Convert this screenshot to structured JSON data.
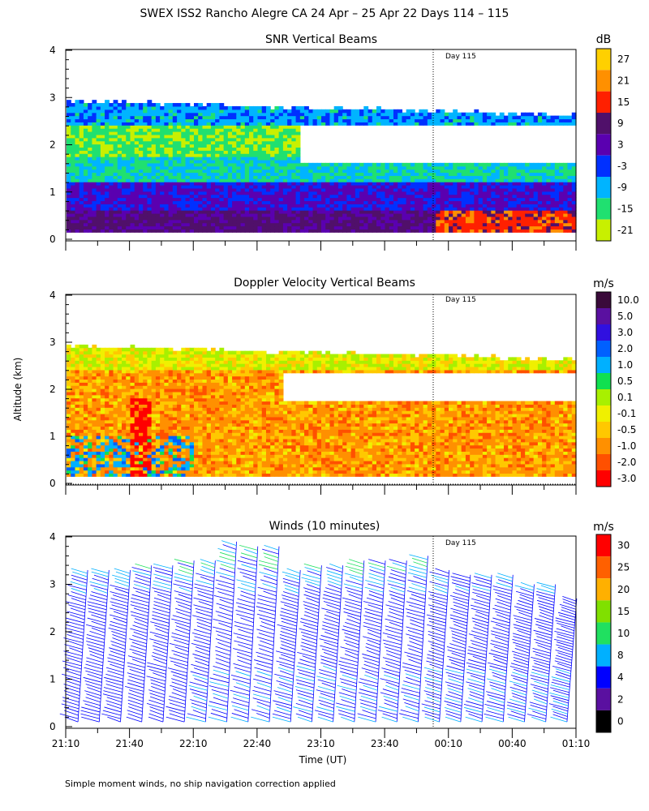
{
  "figure": {
    "title": "SWEX ISS2 Rancho Alegre CA  24 Apr – 25 Apr 22 Days 114 – 115",
    "footnote": "Simple moment winds, no ship navigation correction applied",
    "ylabel": "Altitude (km)",
    "xlabel": "Time (UT)",
    "day_marker_label": "Day 115",
    "x_ticks": [
      "21:10",
      "21:40",
      "22:10",
      "22:40",
      "23:10",
      "23:40",
      "00:10",
      "00:40",
      "01:10"
    ]
  },
  "chart_data": [
    {
      "type": "heatmap",
      "title": "SNR Vertical Beams",
      "colorbar": {
        "unit": "dB",
        "labels": [
          "27",
          "21",
          "15",
          "9",
          "3",
          "-3",
          "-9",
          "-15",
          "-21"
        ],
        "colors": [
          "#ffd000",
          "#ff9000",
          "#ff2000",
          "#50106a",
          "#5a00b0",
          "#0030ff",
          "#00b4ff",
          "#20e070",
          "#c8f000"
        ]
      },
      "y_ticks": [
        "0",
        "1",
        "2",
        "3",
        "4"
      ],
      "ylim": [
        0,
        4
      ],
      "x_range": [
        "21:10",
        "01:10"
      ],
      "data_extent_km": [
        0.15,
        2.9
      ],
      "day_marker_time": "00:04",
      "layers": [
        {
          "from_km": 0.15,
          "to_km": 0.6,
          "snr_db": 7
        },
        {
          "from_km": 0.6,
          "to_km": 1.2,
          "snr_db": 1
        },
        {
          "from_km": 1.2,
          "to_km": 1.7,
          "snr_db": -12
        },
        {
          "from_km": 1.7,
          "to_km": 2.4,
          "snr_db": -17
        },
        {
          "from_km": 2.4,
          "to_km": 2.9,
          "snr_db": -8
        }
      ]
    },
    {
      "type": "heatmap",
      "title": "Doppler Velocity Vertical Beams",
      "colorbar": {
        "unit": "m/s",
        "labels": [
          "10.0",
          "5.0",
          "3.0",
          "2.0",
          "1.0",
          "0.5",
          "0.1",
          "-0.1",
          "-0.5",
          "-1.0",
          "-2.0",
          "-3.0"
        ],
        "colors": [
          "#3a0a3a",
          "#5a10a0",
          "#3010e0",
          "#0060ff",
          "#00b0ff",
          "#10e050",
          "#a8f000",
          "#f0f000",
          "#ffc800",
          "#ff9000",
          "#ff5000",
          "#ff0000"
        ]
      },
      "y_ticks": [
        "0",
        "1",
        "2",
        "3",
        "4"
      ],
      "ylim": [
        0,
        4
      ],
      "x_range": [
        "21:10",
        "01:10"
      ],
      "data_extent_km": [
        0.15,
        2.9
      ],
      "day_marker_time": "00:04",
      "dominant_velocity_ms": -1.0
    },
    {
      "type": "wind_barbs",
      "title": "Winds (10 minutes)",
      "colorbar": {
        "unit": "m/s",
        "labels": [
          "30",
          "25",
          "20",
          "15",
          "10",
          "8",
          "4",
          "2",
          "0"
        ],
        "colors": [
          "#ff0000",
          "#ff6000",
          "#ffb000",
          "#80e000",
          "#20e060",
          "#00b0ff",
          "#0000ff",
          "#5a10a0",
          "#000000"
        ]
      },
      "y_ticks": [
        "0",
        "1",
        "2",
        "3",
        "4"
      ],
      "ylim": [
        0,
        4
      ],
      "x_range": [
        "21:10",
        "01:10"
      ],
      "day_marker_time": "00:04",
      "profile_times": [
        "21:15",
        "21:25",
        "21:35",
        "21:45",
        "21:55",
        "22:05",
        "22:15",
        "22:25",
        "22:35",
        "22:45",
        "22:55",
        "23:05",
        "23:15",
        "23:25",
        "23:35",
        "23:45",
        "23:55",
        "00:05",
        "00:15",
        "00:25",
        "00:35",
        "00:45",
        "00:55",
        "01:05"
      ],
      "profile_tops_km": [
        3.3,
        3.3,
        3.3,
        3.4,
        3.4,
        3.5,
        3.5,
        3.9,
        3.8,
        3.8,
        3.3,
        3.4,
        3.4,
        3.5,
        3.5,
        3.5,
        3.6,
        3.3,
        3.2,
        3.2,
        3.2,
        3.0,
        3.0,
        2.7
      ]
    }
  ]
}
